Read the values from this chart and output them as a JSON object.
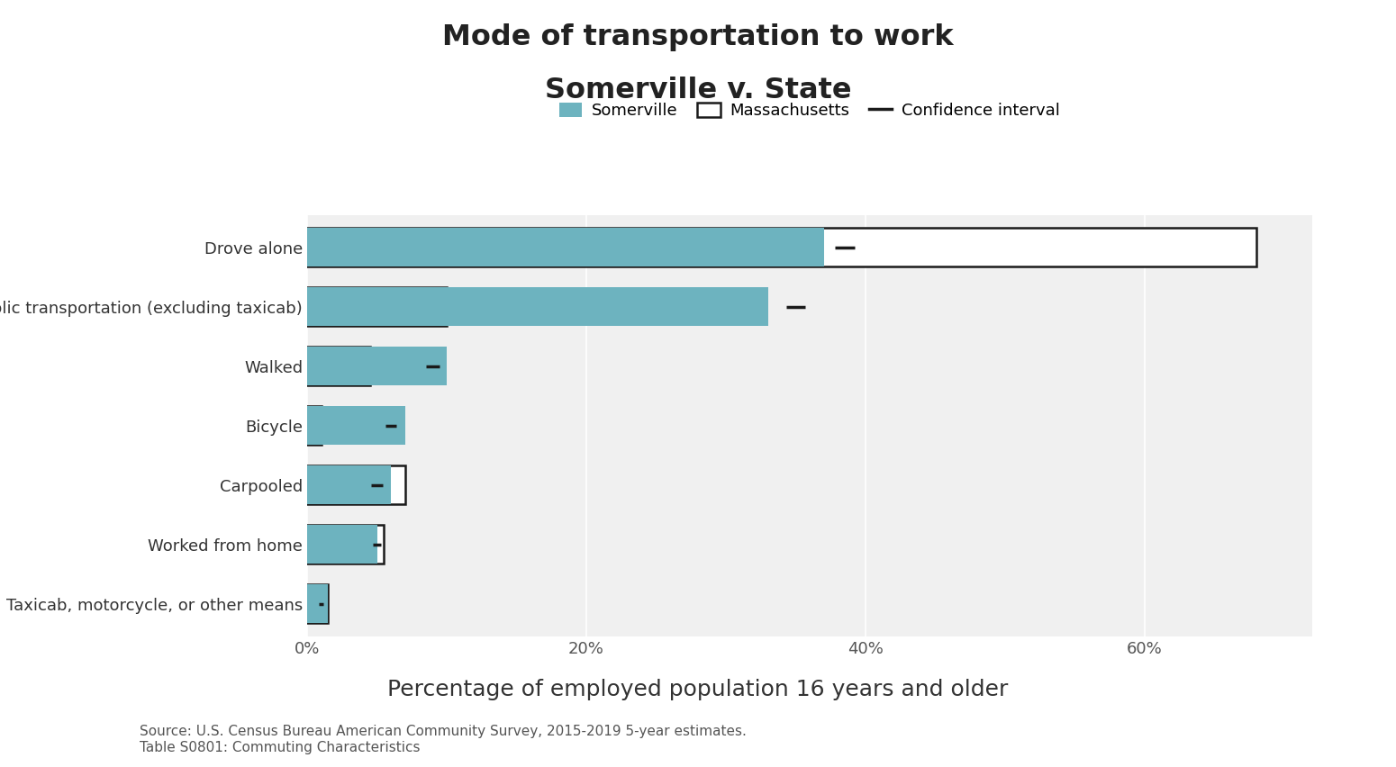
{
  "title_line1": "Mode of transportation to work",
  "title_line2": "Somerville v. State",
  "categories": [
    "Drove alone",
    "Public transportation (excluding taxicab)",
    "Walked",
    "Bicycle",
    "Carpooled",
    "Worked from home",
    "Taxicab, motorcycle, or other means"
  ],
  "somerville_values": [
    37.0,
    33.0,
    10.0,
    7.0,
    6.0,
    5.0,
    1.5
  ],
  "massachusetts_values": [
    68.0,
    10.0,
    4.5,
    1.0,
    7.0,
    5.5,
    1.5
  ],
  "confidence_intervals": [
    38.5,
    35.0,
    9.0,
    6.0,
    5.0,
    5.0,
    1.0
  ],
  "ci_half_width": [
    0.7,
    0.7,
    0.5,
    0.4,
    0.4,
    0.3,
    0.15
  ],
  "somerville_color": "#6db3bf",
  "massachusetts_color": "white",
  "massachusetts_edgecolor": "#1a1a1a",
  "ci_color": "#1a1a1a",
  "plot_bg_color": "#f0f0f0",
  "fig_bg_color": "white",
  "grid_color": "white",
  "xlim": [
    0,
    72
  ],
  "xtick_values": [
    0,
    20,
    40,
    60
  ],
  "xtick_labels": [
    "0%",
    "20%",
    "40%",
    "60%"
  ],
  "xlabel": "Percentage of employed population 16 years and older",
  "source_text": "Source: U.S. Census Bureau American Community Survey, 2015-2019 5-year estimates.\nTable S0801: Commuting Characteristics",
  "title_fontsize": 23,
  "label_fontsize": 13,
  "tick_fontsize": 13,
  "xlabel_fontsize": 18,
  "source_fontsize": 11,
  "legend_fontsize": 13
}
